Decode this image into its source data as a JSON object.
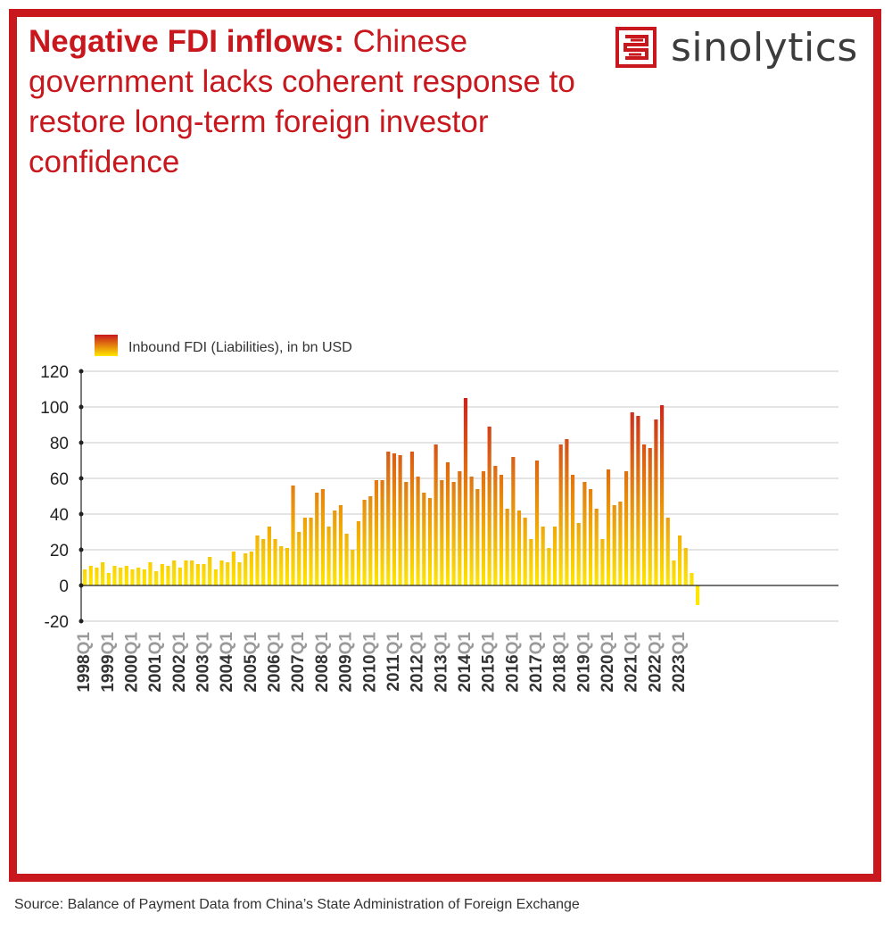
{
  "title": {
    "bold": "Negative FDI inflows:",
    "rest": " Chinese government lacks coherent response to restore long-term foreign investor confidence"
  },
  "brand": {
    "name": "sinolytics",
    "logo_icon": "sinolytics-logo-icon",
    "color": "#c8181e"
  },
  "source": "Source: Balance of Payment Data from China’s State Administration of Foreign Exchange",
  "colors": {
    "frame": "#c8181e",
    "bar_top": "#c8181e",
    "bar_bottom": "#ffe600",
    "grid": "#c8c8c8",
    "axis": "#222222",
    "year_label": "#333333",
    "quarter_label": "#9a9a9a"
  },
  "chart_data": {
    "type": "bar",
    "legend": {
      "label": "Inbound FDI (Liabilities), in bn USD",
      "position": "top-left"
    },
    "ylim": [
      -20,
      120
    ],
    "yticks": [
      -20,
      0,
      20,
      40,
      60,
      80,
      100,
      120
    ],
    "grid": true,
    "x_tick_labels": [
      {
        "year": "1998",
        "quarter": "Q1"
      },
      {
        "year": "1999",
        "quarter": "Q1"
      },
      {
        "year": "2000",
        "quarter": "Q1"
      },
      {
        "year": "2001",
        "quarter": "Q1"
      },
      {
        "year": "2002",
        "quarter": "Q1"
      },
      {
        "year": "2003",
        "quarter": "Q1"
      },
      {
        "year": "2004",
        "quarter": "Q1"
      },
      {
        "year": "2005",
        "quarter": "Q1"
      },
      {
        "year": "2006",
        "quarter": "Q1"
      },
      {
        "year": "2007",
        "quarter": "Q1"
      },
      {
        "year": "2008",
        "quarter": "Q1"
      },
      {
        "year": "2009",
        "quarter": "Q1"
      },
      {
        "year": "2010",
        "quarter": "Q1"
      },
      {
        "year": "2011",
        "quarter": "Q1"
      },
      {
        "year": "2012",
        "quarter": "Q1"
      },
      {
        "year": "2013",
        "quarter": "Q1"
      },
      {
        "year": "2014",
        "quarter": "Q1"
      },
      {
        "year": "2015",
        "quarter": "Q1"
      },
      {
        "year": "2016",
        "quarter": "Q1"
      },
      {
        "year": "2017",
        "quarter": "Q1"
      },
      {
        "year": "2018",
        "quarter": "Q1"
      },
      {
        "year": "2019",
        "quarter": "Q1"
      },
      {
        "year": "2020",
        "quarter": "Q1"
      },
      {
        "year": "2021",
        "quarter": "Q1"
      },
      {
        "year": "2022",
        "quarter": "Q1"
      },
      {
        "year": "2023",
        "quarter": "Q1"
      }
    ],
    "series": [
      {
        "start": "1998Q1",
        "values": [
          9,
          11,
          10,
          13,
          7,
          11,
          10,
          11,
          9,
          10,
          9,
          13,
          8,
          12,
          11,
          14,
          10,
          14,
          14,
          12,
          12,
          16,
          9,
          14,
          13,
          19,
          13,
          18,
          19,
          28,
          26,
          33,
          26,
          22,
          21,
          56,
          30,
          38,
          38,
          52,
          54,
          33,
          42,
          45,
          29,
          20,
          36,
          48,
          50,
          59,
          59,
          75,
          74,
          73,
          58,
          75,
          61,
          52,
          49,
          79,
          59,
          69,
          58,
          64,
          105,
          61,
          54,
          64,
          89,
          67,
          62,
          43,
          72,
          42,
          38,
          26,
          70,
          33,
          21,
          33,
          79,
          82,
          62,
          35,
          58,
          54,
          43,
          26,
          65,
          45,
          47,
          64,
          97,
          95,
          79,
          77,
          93,
          101,
          38,
          14,
          28,
          21,
          7,
          -11
        ]
      }
    ]
  }
}
